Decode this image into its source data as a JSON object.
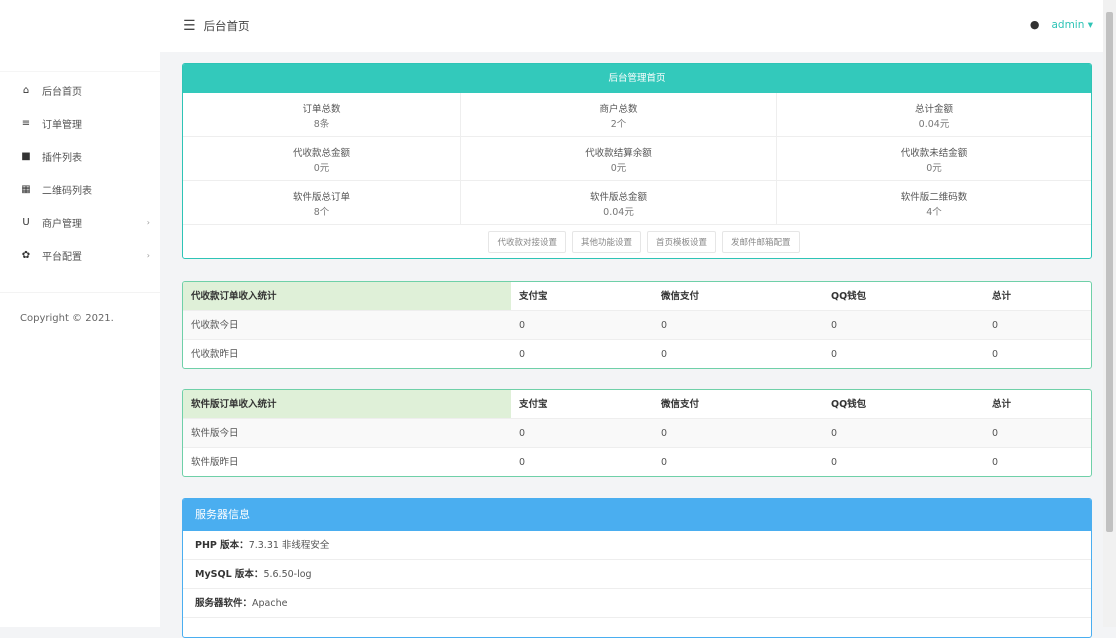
{
  "header": {
    "title": "后台首页",
    "user": "admin"
  },
  "sidebar": {
    "items": [
      {
        "label": "后台首页",
        "icon": "home-icon",
        "glyph": "⌂"
      },
      {
        "label": "订单管理",
        "icon": "list-icon",
        "glyph": "≡"
      },
      {
        "label": "插件列表",
        "icon": "plugin-icon",
        "glyph": "■"
      },
      {
        "label": "二维码列表",
        "icon": "qrcode-icon",
        "glyph": "▦"
      },
      {
        "label": "商户管理",
        "icon": "magnet-icon",
        "glyph": "U",
        "arrow": "›"
      },
      {
        "label": "平台配置",
        "icon": "gear-icon",
        "glyph": "✿",
        "arrow": "›"
      }
    ],
    "copyright": "Copyright © 2021."
  },
  "overview": {
    "title": "后台管理首页",
    "stats": [
      [
        {
          "label": "订单总数",
          "value": "8条"
        },
        {
          "label": "商户总数",
          "value": "2个"
        },
        {
          "label": "总计金额",
          "value": "0.04元"
        }
      ],
      [
        {
          "label": "代收款总金额",
          "value": "0元"
        },
        {
          "label": "代收款结算余额",
          "value": "0元"
        },
        {
          "label": "代收款未结金额",
          "value": "0元"
        }
      ],
      [
        {
          "label": "软件版总订单",
          "value": "8个"
        },
        {
          "label": "软件版总金额",
          "value": "0.04元"
        },
        {
          "label": "软件版二维码数",
          "value": "4个"
        }
      ]
    ],
    "buttons": [
      "代收款对接设置",
      "其他功能设置",
      "首页模板设置",
      "发邮件邮箱配置"
    ]
  },
  "tables": [
    {
      "headers": [
        "代收款订单收入统计",
        "支付宝",
        "微信支付",
        "QQ钱包",
        "总计"
      ],
      "rows": [
        [
          "代收款今日",
          "0",
          "0",
          "0",
          "0"
        ],
        [
          "代收款昨日",
          "0",
          "0",
          "0",
          "0"
        ]
      ]
    },
    {
      "headers": [
        "软件版订单收入统计",
        "支付宝",
        "微信支付",
        "QQ钱包",
        "总计"
      ],
      "rows": [
        [
          "软件版今日",
          "0",
          "0",
          "0",
          "0"
        ],
        [
          "软件版昨日",
          "0",
          "0",
          "0",
          "0"
        ]
      ]
    }
  ],
  "server": {
    "title": "服务器信息",
    "items": [
      {
        "label": "PHP 版本：",
        "value": "7.3.31 非线程安全"
      },
      {
        "label": "MySQL 版本：",
        "value": "5.6.50-log"
      },
      {
        "label": "服务器软件：",
        "value": "Apache"
      }
    ]
  },
  "colors": {
    "teal": "#33c9bb",
    "blue": "#4aaef0",
    "green_header": "#dff0d8"
  }
}
